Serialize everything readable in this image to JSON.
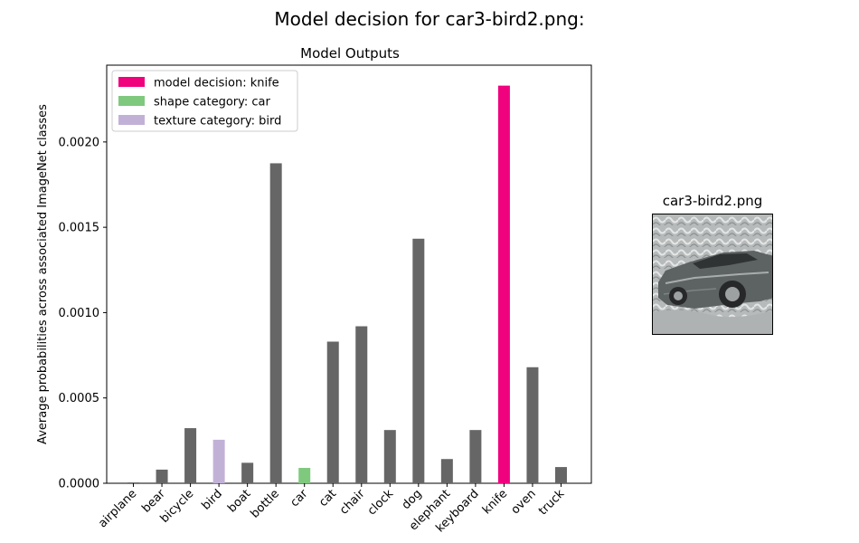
{
  "figure": {
    "suptitle": "Model decision for car3-bird2.png:"
  },
  "chart_data": {
    "type": "bar",
    "title": "Model Outputs",
    "xlabel": "",
    "ylabel": "Average probabilities across associated ImageNet classes",
    "categories": [
      "airplane",
      "bear",
      "bicycle",
      "bird",
      "boat",
      "bottle",
      "car",
      "cat",
      "chair",
      "clock",
      "dog",
      "elephant",
      "keyboard",
      "knife",
      "oven",
      "truck"
    ],
    "values": [
      5e-06,
      8e-05,
      0.000323,
      0.000255,
      0.00012,
      0.001875,
      9e-05,
      0.00083,
      0.00092,
      0.000312,
      0.001433,
      0.000142,
      0.000312,
      0.00233,
      0.00068,
      9.5e-05
    ],
    "bar_colors": [
      "#666666",
      "#666666",
      "#666666",
      "#c2b1d7",
      "#666666",
      "#666666",
      "#7fc97f",
      "#666666",
      "#666666",
      "#666666",
      "#666666",
      "#666666",
      "#666666",
      "#f0027f",
      "#666666",
      "#666666"
    ],
    "ylim": [
      0,
      0.00245
    ],
    "yticks": [
      0.0,
      0.0005,
      0.001,
      0.0015,
      0.002
    ],
    "ytick_labels": [
      "0.0000",
      "0.0005",
      "0.0010",
      "0.0015",
      "0.0020"
    ],
    "grid": false,
    "legend_position": "top-left",
    "legend": [
      {
        "label": "model decision: knife",
        "color": "#f0027f"
      },
      {
        "label": "shape category: car",
        "color": "#7fc97f"
      },
      {
        "label": "texture category: bird",
        "color": "#c2b1d7"
      }
    ]
  },
  "image_panel": {
    "title": "car3-bird2.png",
    "image": "car-with-bird-texture"
  }
}
